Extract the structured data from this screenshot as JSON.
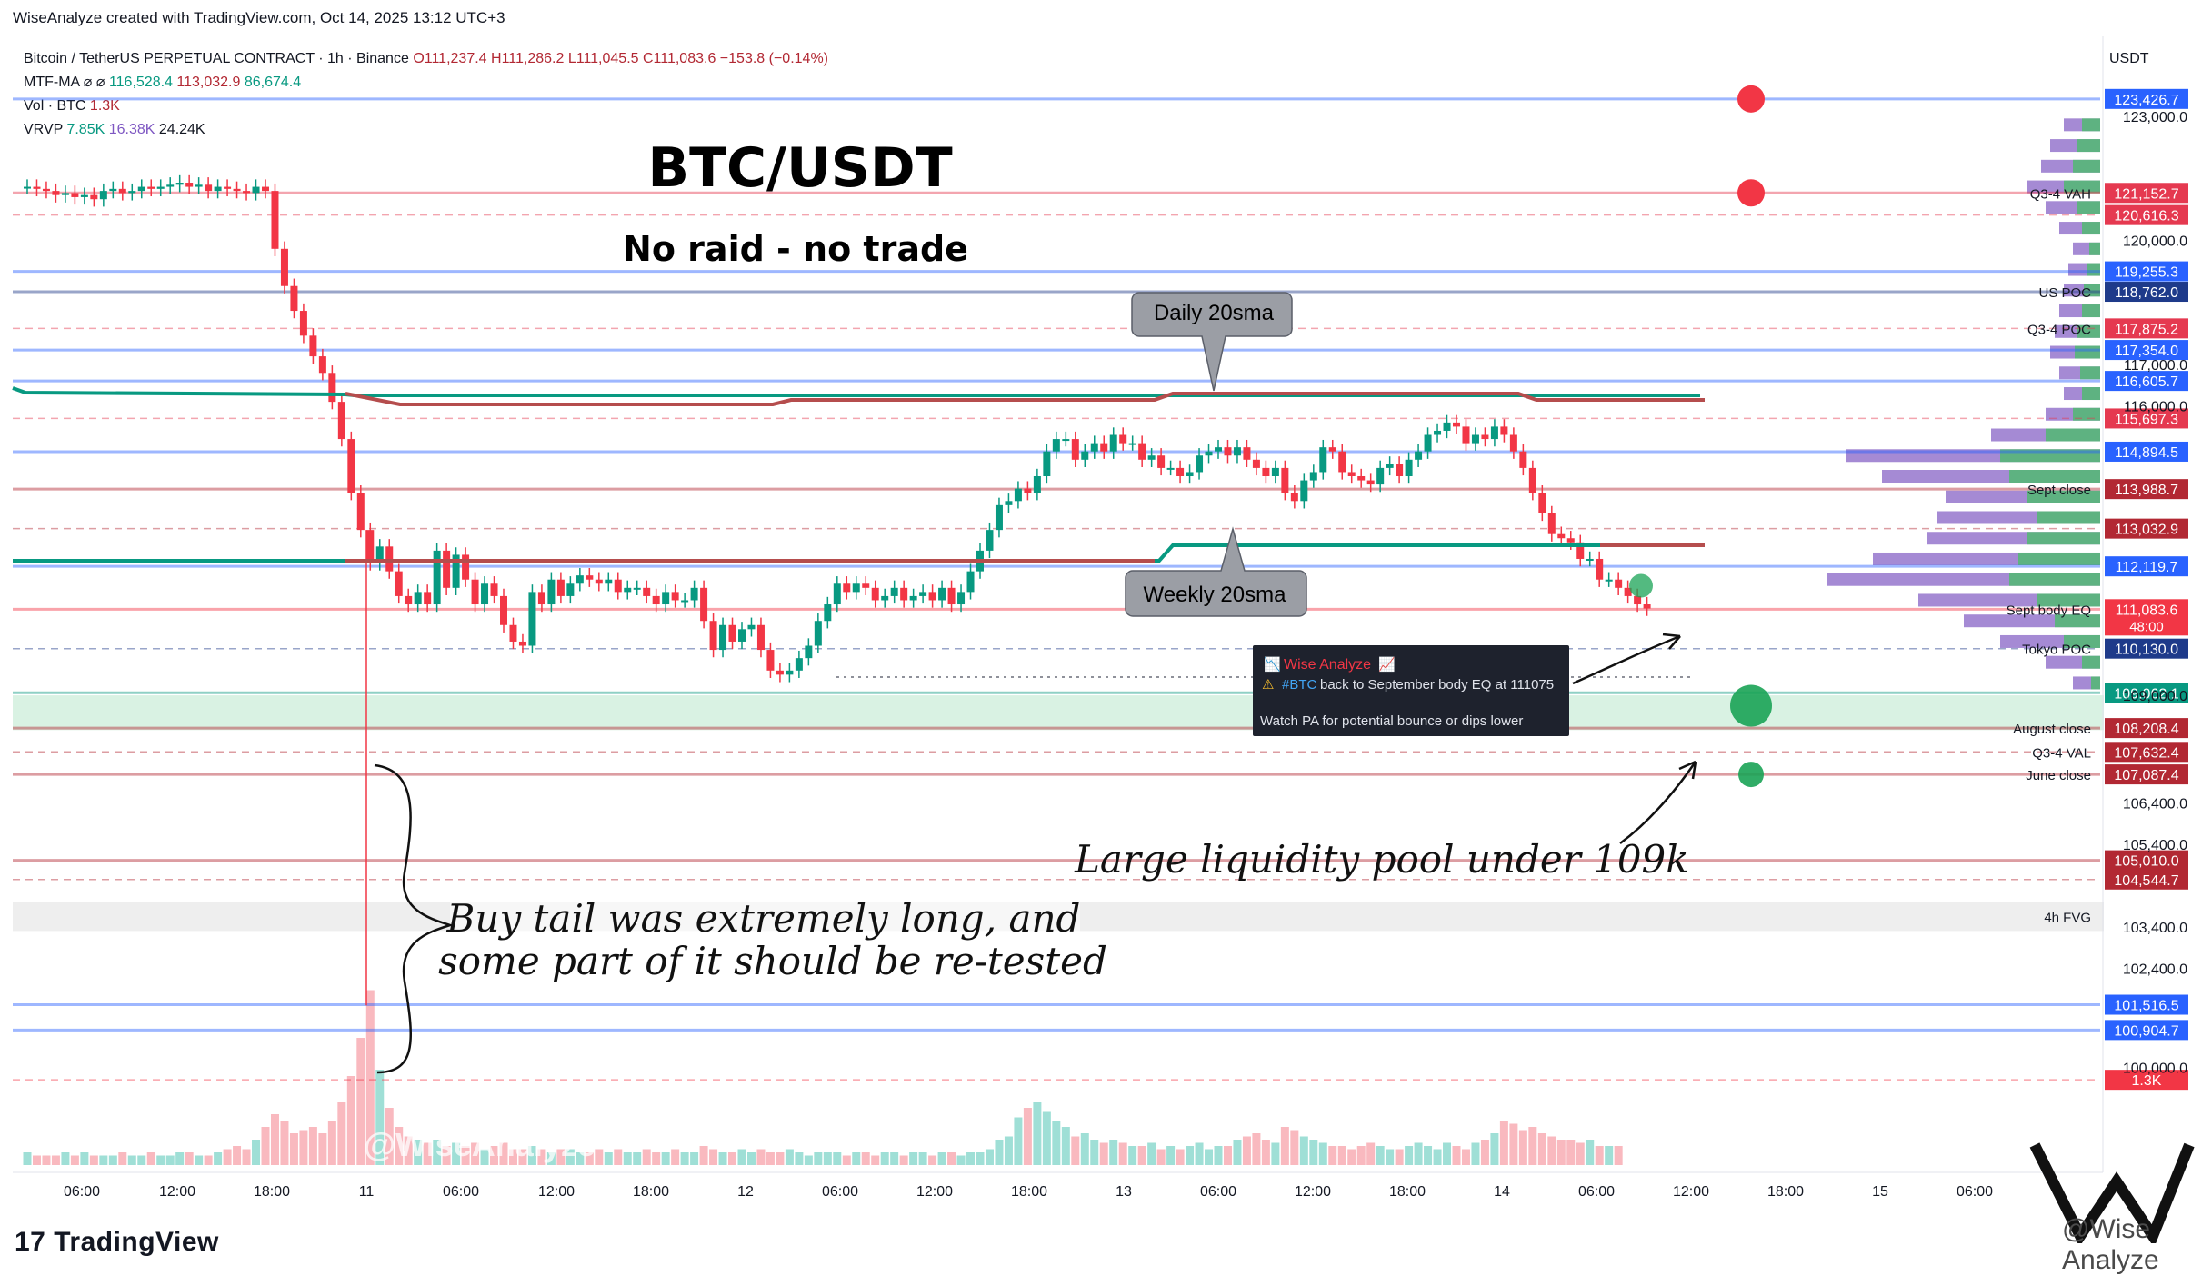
{
  "header": {
    "attribution": "WiseAnalyze created with TradingView.com, Oct 14, 2025 13:12 UTC+3",
    "currency": "USDT"
  },
  "legend": {
    "symbol": "Bitcoin / TetherUS PERPETUAL CONTRACT · 1h · Binance",
    "ohlc": [
      "O111,237.4",
      "H111,286.2",
      "L111,045.5",
      "C111,083.6",
      "−153.8 (−0.14%)"
    ],
    "mtf_label": "MTF-MA ⌀ ⌀",
    "mtf_values": [
      "116,528.4",
      "113,032.9",
      "86,674.4"
    ],
    "vol_label": "Vol · BTC",
    "vol_value": "1.3K",
    "vrvp_label": "VRVP",
    "vrvp_values": [
      "7.85K",
      "16.38K",
      "24.24K"
    ]
  },
  "annotations": {
    "title": "BTC/USDT",
    "subtitle": "No raid - no trade",
    "daily_sma": "Daily 20sma",
    "weekly_sma": "Weekly 20sma",
    "liquidity_note": "Large liquidity pool under 109k",
    "tail_note_1": "Buy tail was extremely long, and",
    "tail_note_2": "some part of it should be re-tested",
    "watermark": "@WiseAnalyze"
  },
  "idea_card": {
    "author": "Wise Analyze",
    "line1_tag": "#BTC",
    "line1": "back to September body EQ at 111075",
    "line2": "Watch PA for potential bounce or dips lower"
  },
  "footer": {
    "brand": "TradingView",
    "wm": "@Wise Analyze"
  },
  "chart_data": {
    "type": "candlestick",
    "ylim": [
      99000,
      124500
    ],
    "x_ticks": [
      "06:00",
      "12:00",
      "18:00",
      "11",
      "06:00",
      "12:00",
      "18:00",
      "12",
      "06:00",
      "12:00",
      "18:00",
      "13",
      "06:00",
      "12:00",
      "18:00",
      "14",
      "06:00",
      "12:00",
      "18:00",
      "15",
      "06:00"
    ],
    "y_ticks": [
      "123,000.0",
      "120,000.0",
      "117,000.0",
      "116,000.0",
      "109,000.0",
      "106,400.0",
      "105,400.0",
      "103,400.0",
      "102,400.0",
      "100,000.0"
    ],
    "price_labels": [
      {
        "price": 123426.7,
        "text": "123,426.7",
        "color": "#2962ff"
      },
      {
        "price": 121152.7,
        "text": "121,152.7",
        "color": "#e53950",
        "tag": "Q3-4 VAH"
      },
      {
        "price": 120616.3,
        "text": "120,616.3",
        "color": "#e53950"
      },
      {
        "price": 119255.3,
        "text": "119,255.3",
        "color": "#2962ff"
      },
      {
        "price": 118762.0,
        "text": "118,762.0",
        "color": "#1e3a8a",
        "tag": "US POC"
      },
      {
        "price": 117875.2,
        "text": "117,875.2",
        "color": "#e53950",
        "tag": "Q3-4 POC"
      },
      {
        "price": 117354.0,
        "text": "117,354.0",
        "color": "#2962ff"
      },
      {
        "price": 116605.7,
        "text": "116,605.7",
        "color": "#2962ff"
      },
      {
        "price": 115697.3,
        "text": "115,697.3",
        "color": "#e53950"
      },
      {
        "price": 114894.5,
        "text": "114,894.5",
        "color": "#2962ff"
      },
      {
        "price": 113988.7,
        "text": "113,988.7",
        "color": "#b22833",
        "tag": "Sept close"
      },
      {
        "price": 113032.9,
        "text": "113,032.9",
        "color": "#b22833"
      },
      {
        "price": 112119.7,
        "text": "112,119.7",
        "color": "#2962ff"
      },
      {
        "price": 111083.6,
        "text": "111,083.6",
        "sub": "48:00",
        "color": "#f23645",
        "tag": "Sept body EQ"
      },
      {
        "price": 110130.0,
        "text": "110,130.0",
        "color": "#1e3a8a",
        "tag": "Tokyo POC"
      },
      {
        "price": 109062.1,
        "text": "109,062.1",
        "color": "#089981"
      },
      {
        "price": 108208.4,
        "text": "108,208.4",
        "color": "#b22833",
        "tag": "August close"
      },
      {
        "price": 107632.4,
        "text": "107,632.4",
        "color": "#b22833",
        "tag": "Q3-4 VAL"
      },
      {
        "price": 107087.4,
        "text": "107,087.4",
        "color": "#b22833",
        "tag": "June close"
      },
      {
        "price": 105010.0,
        "text": "105,010.0",
        "color": "#b22833"
      },
      {
        "price": 104544.7,
        "text": "104,544.7",
        "color": "#b22833"
      },
      {
        "price": 101516.5,
        "text": "101,516.5",
        "color": "#2962ff"
      },
      {
        "price": 100904.7,
        "text": "100,904.7",
        "color": "#2962ff"
      },
      {
        "price": 99700,
        "text": "1.3K",
        "color": "#f23645"
      }
    ],
    "fvg_label": "4h FVG",
    "fvg_range": [
      103300,
      104000
    ],
    "liquidity_zone": [
      108600,
      109000
    ],
    "close_series": [
      121300,
      121250,
      121200,
      121100,
      121150,
      121050,
      121100,
      121000,
      121200,
      121250,
      121150,
      121200,
      121300,
      121250,
      121300,
      121350,
      121400,
      121300,
      121350,
      121200,
      121300,
      121250,
      121200,
      121150,
      121300,
      121200,
      119800,
      118900,
      118300,
      117700,
      117200,
      116800,
      116100,
      115200,
      113900,
      113000,
      112200,
      112600,
      112000,
      111400,
      111200,
      111500,
      111200,
      112500,
      111600,
      112400,
      111800,
      111200,
      111700,
      111400,
      110700,
      110300,
      110200,
      111500,
      111200,
      111800,
      111400,
      111700,
      111900,
      111800,
      111700,
      111800,
      111500,
      111600,
      111600,
      111400,
      111200,
      111500,
      111300,
      111300,
      111600,
      110800,
      110100,
      110700,
      110300,
      110600,
      110700,
      110100,
      109600,
      109500,
      109600,
      109900,
      110200,
      110800,
      111200,
      111700,
      111500,
      111700,
      111600,
      111300,
      111400,
      111600,
      111300,
      111400,
      111500,
      111300,
      111600,
      111200,
      111500,
      112000,
      112500,
      113000,
      113600,
      113700,
      114000,
      113900,
      114300,
      114900,
      115200,
      115200,
      114700,
      114900,
      115100,
      114900,
      115300,
      115100,
      115100,
      114700,
      114800,
      114500,
      114500,
      114300,
      114400,
      114800,
      114900,
      115000,
      114800,
      115000,
      114700,
      114500,
      114300,
      114500,
      113900,
      113700,
      114200,
      114400,
      115000,
      114900,
      114400,
      114300,
      114200,
      114100,
      114500,
      114600,
      114300,
      114700,
      114900,
      115300,
      115400,
      115600,
      115500,
      115100,
      115300,
      115200,
      115500,
      115300,
      114900,
      114500,
      113900,
      113400,
      112900,
      112800,
      112700,
      112300,
      112300,
      111800,
      111800,
      111600,
      111400,
      111200,
      111100
    ],
    "volume_series": [
      4,
      3,
      3,
      3,
      4,
      3,
      4,
      3,
      3,
      3,
      4,
      3,
      3,
      4,
      3,
      3,
      4,
      4,
      3,
      3,
      4,
      5,
      6,
      5,
      8,
      12,
      16,
      14,
      10,
      11,
      12,
      10,
      14,
      20,
      28,
      40,
      55,
      30,
      18,
      12,
      9,
      8,
      7,
      8,
      6,
      7,
      6,
      7,
      5,
      6,
      7,
      5,
      5,
      6,
      5,
      4,
      5,
      5,
      4,
      4,
      5,
      4,
      5,
      4,
      4,
      5,
      4,
      4,
      5,
      4,
      4,
      6,
      5,
      4,
      4,
      5,
      4,
      5,
      4,
      4,
      5,
      4,
      3,
      4,
      4,
      4,
      3,
      4,
      4,
      3,
      4,
      4,
      3,
      4,
      4,
      3,
      4,
      4,
      3,
      4,
      4,
      5,
      8,
      9,
      15,
      18,
      20,
      17,
      14,
      12,
      9,
      10,
      8,
      7,
      8,
      7,
      6,
      6,
      7,
      5,
      6,
      5,
      6,
      7,
      5,
      6,
      6,
      8,
      9,
      10,
      8,
      7,
      12,
      11,
      9,
      8,
      7,
      6,
      6,
      5,
      6,
      7,
      6,
      5,
      5,
      6,
      7,
      6,
      5,
      7,
      6,
      5,
      7,
      8,
      10,
      14,
      13,
      11,
      12,
      10,
      9,
      8,
      8,
      7,
      8,
      6,
      6,
      6
    ]
  }
}
